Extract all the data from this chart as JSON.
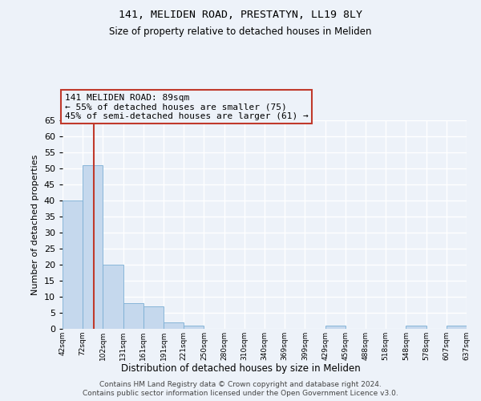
{
  "title1": "141, MELIDEN ROAD, PRESTATYN, LL19 8LY",
  "title2": "Size of property relative to detached houses in Meliden",
  "xlabel": "Distribution of detached houses by size in Meliden",
  "ylabel": "Number of detached properties",
  "bin_labels": [
    "42sqm",
    "72sqm",
    "102sqm",
    "131sqm",
    "161sqm",
    "191sqm",
    "221sqm",
    "250sqm",
    "280sqm",
    "310sqm",
    "340sqm",
    "369sqm",
    "399sqm",
    "429sqm",
    "459sqm",
    "488sqm",
    "518sqm",
    "548sqm",
    "578sqm",
    "607sqm",
    "637sqm"
  ],
  "bar_values": [
    40,
    51,
    20,
    8,
    7,
    2,
    1,
    0,
    0,
    0,
    0,
    0,
    0,
    1,
    0,
    0,
    0,
    1,
    0,
    1
  ],
  "bar_color": "#c5d8ed",
  "bar_edge_color": "#7aaed4",
  "ylim": [
    0,
    65
  ],
  "yticks": [
    0,
    5,
    10,
    15,
    20,
    25,
    30,
    35,
    40,
    45,
    50,
    55,
    60,
    65
  ],
  "vline_color": "#c0392b",
  "annotation_text": "141 MELIDEN ROAD: 89sqm\n← 55% of detached houses are smaller (75)\n45% of semi-detached houses are larger (61) →",
  "annotation_box_color": "#c0392b",
  "footer1": "Contains HM Land Registry data © Crown copyright and database right 2024.",
  "footer2": "Contains public sector information licensed under the Open Government Licence v3.0.",
  "bg_color": "#edf2f9",
  "grid_color": "#ffffff"
}
